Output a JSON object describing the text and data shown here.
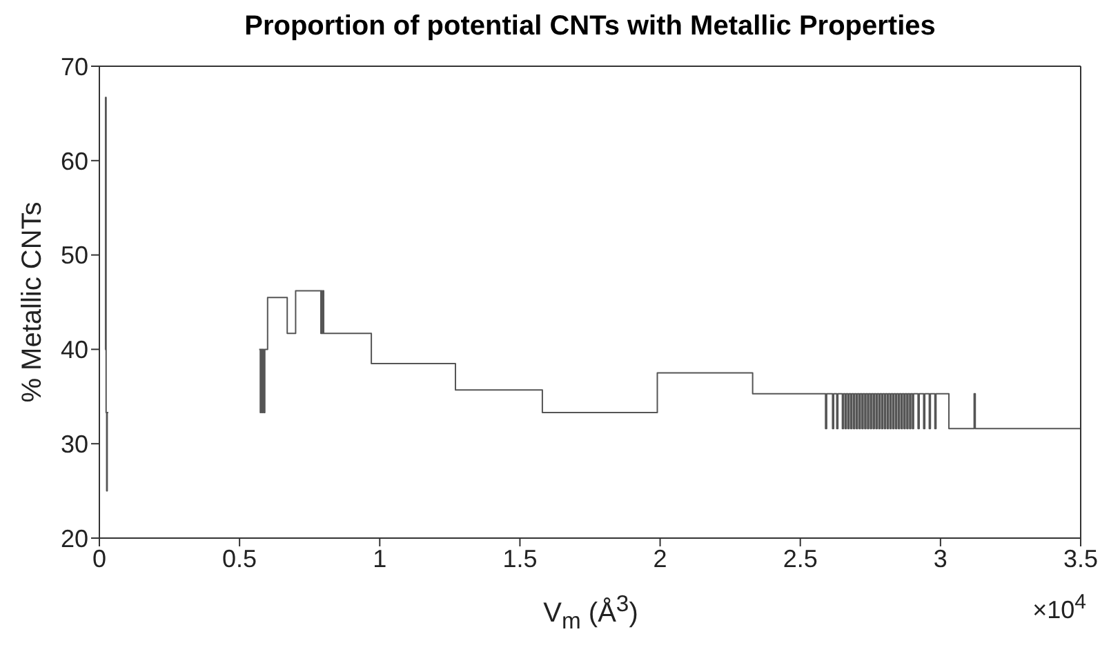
{
  "chart_data": {
    "type": "step",
    "title": "Proportion of potential CNTs with Metallic Properties",
    "xlabel": "V$_{m}$ (Å$^{3}$)",
    "ylabel": "% Metallic CNTs",
    "annotations": [
      "×10$^{4}$"
    ],
    "x": [
      0.02,
      0.022,
      0.024,
      0.026,
      0.028,
      0.032,
      0.033,
      0.57,
      0.574,
      0.576,
      0.58,
      0.582,
      0.586,
      0.59,
      0.6,
      0.67,
      0.7,
      0.79,
      0.792,
      0.795,
      0.798,
      0.8,
      0.97,
      1.27,
      1.58,
      1.99,
      2.33,
      2.59,
      2.594,
      2.615,
      2.619,
      2.63,
      2.634,
      2.65,
      2.654,
      2.66,
      2.664,
      2.67,
      2.674,
      2.68,
      2.684,
      2.69,
      2.694,
      2.7,
      2.704,
      2.71,
      2.714,
      2.72,
      2.724,
      2.73,
      2.734,
      2.74,
      2.744,
      2.75,
      2.754,
      2.76,
      2.764,
      2.77,
      2.774,
      2.78,
      2.784,
      2.79,
      2.794,
      2.8,
      2.804,
      2.81,
      2.814,
      2.82,
      2.824,
      2.83,
      2.834,
      2.84,
      2.844,
      2.85,
      2.854,
      2.86,
      2.864,
      2.87,
      2.874,
      2.88,
      2.884,
      2.89,
      2.894,
      2.9,
      2.904,
      2.92,
      2.924,
      2.94,
      2.944,
      2.96,
      2.964,
      2.98,
      2.984,
      3.03,
      3.12,
      3.124,
      3.5
    ],
    "series": [
      {
        "color": "#555555",
        "values": [
          40,
          66.7,
          33.3,
          25,
          33.3,
          33.3,
          null,
          40,
          33.3,
          40,
          33.3,
          40,
          33.3,
          40,
          45.5,
          41.7,
          46.2,
          41.7,
          46.2,
          41.7,
          46.2,
          41.7,
          38.5,
          35.7,
          33.3,
          37.5,
          35.3,
          31.6,
          35.3,
          31.6,
          35.3,
          31.6,
          35.3,
          31.6,
          35.3,
          31.6,
          35.3,
          31.6,
          35.3,
          31.6,
          35.3,
          31.6,
          35.3,
          31.6,
          35.3,
          31.6,
          35.3,
          31.6,
          35.3,
          31.6,
          35.3,
          31.6,
          35.3,
          31.6,
          35.3,
          31.6,
          35.3,
          31.6,
          35.3,
          31.6,
          35.3,
          31.6,
          35.3,
          31.6,
          35.3,
          31.6,
          35.3,
          31.6,
          35.3,
          31.6,
          35.3,
          31.6,
          35.3,
          31.6,
          35.3,
          31.6,
          35.3,
          31.6,
          35.3,
          31.6,
          35.3,
          31.6,
          35.3,
          31.6,
          35.3,
          31.6,
          35.3,
          31.6,
          35.3,
          31.6,
          35.3,
          31.6,
          35.3,
          31.6,
          35.3,
          31.6,
          31.6
        ]
      }
    ],
    "xlim": [
      0,
      3.5
    ],
    "ylim": [
      20,
      70
    ],
    "xticks": [
      0,
      0.5,
      1,
      1.5,
      2,
      2.5,
      3,
      3.5
    ],
    "yticks": [
      20,
      30,
      40,
      50,
      60,
      70
    ],
    "grid": false,
    "legend": false,
    "line_style": "solid"
  }
}
